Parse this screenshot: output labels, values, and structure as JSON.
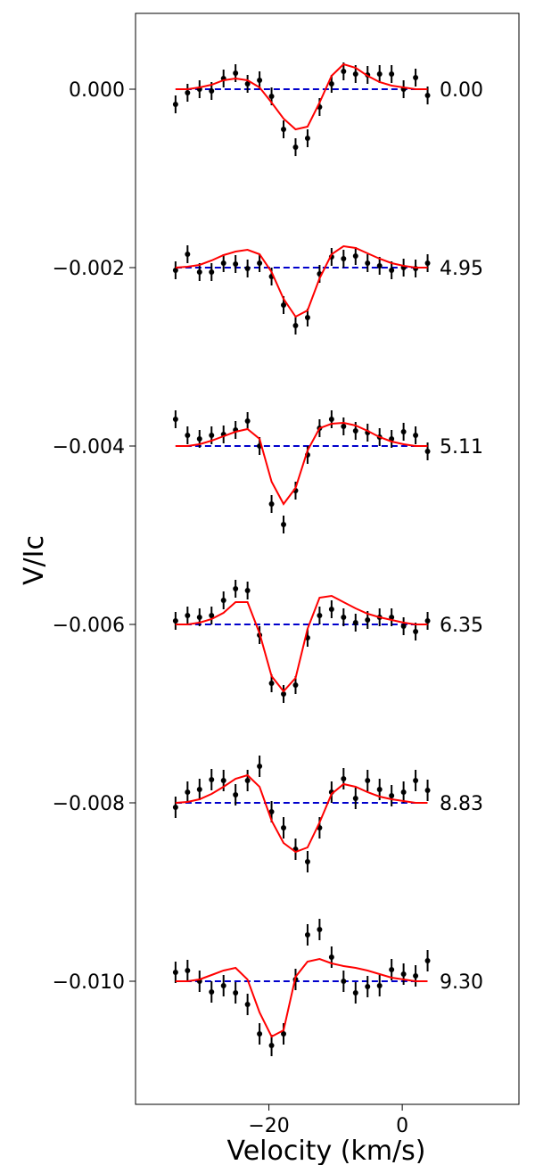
{
  "chart_data": {
    "type": "scatter",
    "xlabel": "Velocity (km/s)",
    "ylabel": "V/Ic",
    "xlim": [
      -40.0,
      17.5
    ],
    "ylim": [
      -0.01138,
      0.00085
    ],
    "xticks": [
      -20,
      0
    ],
    "xtick_labels": [
      "−20",
      "0"
    ],
    "yticks": [
      0.0,
      -0.002,
      -0.004,
      -0.006,
      -0.008,
      -0.01
    ],
    "ytick_labels": [
      "0.000",
      "−0.002",
      "−0.004",
      "−0.006",
      "−0.008",
      "−0.010"
    ],
    "grid": false,
    "colors": {
      "observed": "#000000",
      "model": "#ff0000",
      "zero_line": "#0000cc"
    },
    "velocity": [
      -34,
      -32.2,
      -30.4,
      -28.6,
      -26.8,
      -25,
      -23.2,
      -21.4,
      -19.6,
      -17.8,
      -16,
      -14.2,
      -12.4,
      -10.6,
      -8.8,
      -7,
      -5.2,
      -3.4,
      -1.6,
      0.2,
      2,
      3.8
    ],
    "panels": [
      {
        "label": "0.00",
        "baseline": 0.0,
        "observed": [
          -0.00017,
          -4e-05,
          0.0,
          -2e-05,
          0.00012,
          0.00018,
          6e-05,
          0.0001,
          -8e-05,
          -0.00045,
          -0.00065,
          -0.00055,
          -0.0002,
          6e-05,
          0.0002,
          0.00017,
          0.00016,
          0.00017,
          0.00017,
          0.0,
          0.00013,
          -7e-05
        ],
        "error": [
          0.0001,
          0.0001,
          0.0001,
          0.0001,
          0.0001,
          0.0001,
          0.0001,
          0.0001,
          0.0001,
          0.0001,
          0.0001,
          0.0001,
          0.0001,
          0.0001,
          0.0001,
          0.0001,
          0.0001,
          0.0001,
          0.0001,
          0.0001,
          0.0001,
          0.0001
        ],
        "model": [
          0.0,
          0.0,
          2e-05,
          5e-05,
          0.0001,
          0.00012,
          0.0001,
          2e-05,
          -0.00015,
          -0.00033,
          -0.00045,
          -0.00042,
          -0.00015,
          0.00015,
          0.00028,
          0.00024,
          0.00015,
          8e-05,
          4e-05,
          2e-05,
          0.0,
          0.0
        ]
      },
      {
        "label": "4.95",
        "baseline": -0.002,
        "observed": [
          -0.00203,
          -0.00185,
          -0.00205,
          -0.00205,
          -0.00195,
          -0.00196,
          -0.00201,
          -0.00195,
          -0.0021,
          -0.00242,
          -0.00265,
          -0.00256,
          -0.00207,
          -0.00188,
          -0.0019,
          -0.00187,
          -0.00195,
          -0.00198,
          -0.00203,
          -0.002,
          -0.00201,
          -0.00195
        ],
        "error": [
          0.0001,
          0.0001,
          0.0001,
          0.0001,
          0.0001,
          0.0001,
          0.0001,
          0.0001,
          0.0001,
          0.0001,
          0.0001,
          0.0001,
          0.0001,
          0.0001,
          0.0001,
          0.0001,
          0.0001,
          0.0001,
          0.0001,
          0.0001,
          0.0001,
          0.0001
        ],
        "model": [
          -0.002,
          -0.00199,
          -0.00197,
          -0.00192,
          -0.00186,
          -0.00182,
          -0.0018,
          -0.00185,
          -0.00205,
          -0.00235,
          -0.00255,
          -0.00248,
          -0.00212,
          -0.00185,
          -0.00176,
          -0.00178,
          -0.00184,
          -0.0019,
          -0.00195,
          -0.00198,
          -0.002,
          -0.002
        ]
      },
      {
        "label": "5.11",
        "baseline": -0.004,
        "observed": [
          -0.0037,
          -0.00388,
          -0.00392,
          -0.00388,
          -0.00387,
          -0.00382,
          -0.00372,
          -0.004,
          -0.00465,
          -0.00488,
          -0.0045,
          -0.0041,
          -0.0038,
          -0.0037,
          -0.00378,
          -0.00383,
          -0.00385,
          -0.0039,
          -0.00392,
          -0.00384,
          -0.00388,
          -0.00406
        ],
        "error": [
          0.0001,
          0.0001,
          0.0001,
          0.0001,
          0.0001,
          0.0001,
          0.0001,
          0.0001,
          0.0001,
          0.0001,
          0.0001,
          0.0001,
          0.0001,
          0.0001,
          0.0001,
          0.0001,
          0.0001,
          0.0001,
          0.0001,
          0.0001,
          0.0001,
          0.0001
        ],
        "model": [
          -0.004,
          -0.004,
          -0.00398,
          -0.00394,
          -0.00389,
          -0.00384,
          -0.00381,
          -0.00392,
          -0.0044,
          -0.00465,
          -0.00447,
          -0.00405,
          -0.0038,
          -0.00375,
          -0.00374,
          -0.00377,
          -0.00383,
          -0.0039,
          -0.00395,
          -0.00398,
          -0.004,
          -0.004
        ]
      },
      {
        "label": "6.35",
        "baseline": -0.006,
        "observed": [
          -0.00596,
          -0.0059,
          -0.00592,
          -0.0059,
          -0.00573,
          -0.0056,
          -0.00562,
          -0.00612,
          -0.00666,
          -0.00678,
          -0.00668,
          -0.00615,
          -0.0059,
          -0.00583,
          -0.00592,
          -0.00598,
          -0.00595,
          -0.00592,
          -0.00592,
          -0.00602,
          -0.00608,
          -0.00596
        ],
        "error": [
          0.0001,
          0.0001,
          0.0001,
          0.0001,
          0.0001,
          0.0001,
          0.0001,
          0.0001,
          0.0001,
          0.0001,
          0.0001,
          0.0001,
          0.0001,
          0.0001,
          0.0001,
          0.0001,
          0.0001,
          0.0001,
          0.0001,
          0.0001,
          0.0001,
          0.0001
        ],
        "model": [
          -0.006,
          -0.006,
          -0.00598,
          -0.00594,
          -0.00587,
          -0.00575,
          -0.00575,
          -0.0061,
          -0.00658,
          -0.00675,
          -0.0066,
          -0.00605,
          -0.0057,
          -0.00568,
          -0.00575,
          -0.00582,
          -0.00588,
          -0.00592,
          -0.00595,
          -0.00598,
          -0.006,
          -0.006
        ]
      },
      {
        "label": "8.83",
        "baseline": -0.008,
        "observed": [
          -0.00805,
          -0.00788,
          -0.00785,
          -0.00774,
          -0.00775,
          -0.00791,
          -0.00775,
          -0.00759,
          -0.0081,
          -0.00828,
          -0.00852,
          -0.00866,
          -0.00828,
          -0.00788,
          -0.00773,
          -0.00795,
          -0.00775,
          -0.00785,
          -0.00792,
          -0.00788,
          -0.00775,
          -0.00786
        ],
        "error": [
          0.00012,
          0.00012,
          0.00012,
          0.00012,
          0.00012,
          0.00012,
          0.00012,
          0.00012,
          0.00012,
          0.00012,
          0.00012,
          0.00012,
          0.00012,
          0.00012,
          0.00012,
          0.00012,
          0.00012,
          0.00012,
          0.00012,
          0.00012,
          0.00012,
          0.00012
        ],
        "model": [
          -0.008,
          -0.00799,
          -0.00796,
          -0.0079,
          -0.00782,
          -0.00773,
          -0.00769,
          -0.00782,
          -0.0082,
          -0.00845,
          -0.00855,
          -0.0085,
          -0.00822,
          -0.0079,
          -0.00779,
          -0.00782,
          -0.00788,
          -0.00793,
          -0.00796,
          -0.00798,
          -0.008,
          -0.008
        ]
      },
      {
        "label": "9.30",
        "baseline": -0.01,
        "observed": [
          -0.0099,
          -0.00988,
          -0.01,
          -0.01012,
          -0.01005,
          -0.01013,
          -0.01026,
          -0.01059,
          -0.01072,
          -0.01059,
          -0.00998,
          -0.00948,
          -0.00942,
          -0.00973,
          -0.01,
          -0.01013,
          -0.01006,
          -0.01005,
          -0.00987,
          -0.00992,
          -0.00994,
          -0.00977
        ],
        "error": [
          0.00012,
          0.00012,
          0.00012,
          0.00012,
          0.00012,
          0.00012,
          0.00012,
          0.00012,
          0.00012,
          0.00012,
          0.00012,
          0.00012,
          0.00012,
          0.00012,
          0.00012,
          0.00012,
          0.00012,
          0.00012,
          0.00012,
          0.00012,
          0.00012,
          0.00012
        ],
        "model": [
          -0.01,
          -0.01,
          -0.00998,
          -0.00993,
          -0.00988,
          -0.00985,
          -0.00998,
          -0.01035,
          -0.01062,
          -0.01055,
          -0.00995,
          -0.00978,
          -0.00975,
          -0.0098,
          -0.00983,
          -0.00985,
          -0.00988,
          -0.00992,
          -0.00996,
          -0.00998,
          -0.01,
          -0.01
        ]
      }
    ]
  }
}
